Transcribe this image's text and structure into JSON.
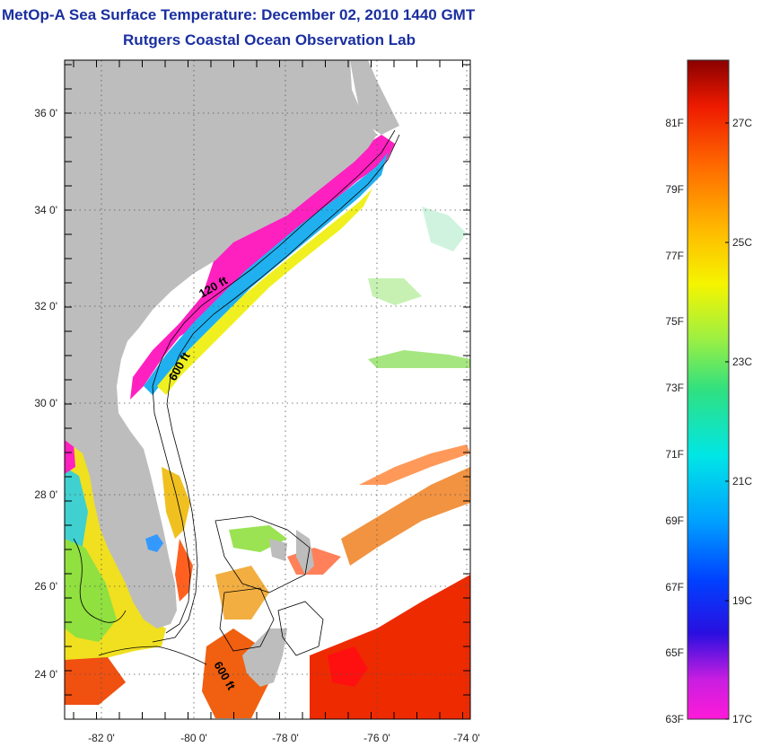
{
  "title": {
    "line1": "MetOp-A Sea Surface Temperature:  December 02, 2010 1440 GMT",
    "line2": "Rutgers Coastal Ocean Observation Lab"
  },
  "axes": {
    "lat_ticks": [
      "36 0'",
      "34 0'",
      "32 0'",
      "30 0'",
      "28 0'",
      "26 0'",
      "24 0'"
    ],
    "lon_ticks": [
      "-82 0'",
      "-80 0'",
      "-78 0'",
      "-76 0'",
      "-74 0'"
    ]
  },
  "contours": {
    "label_120": "120 ft",
    "label_600a": "600 ft",
    "label_600b": "600 ft"
  },
  "colorbar": {
    "fahrenheit": [
      "81F",
      "79F",
      "77F",
      "75F",
      "73F",
      "71F",
      "69F",
      "67F",
      "65F",
      "63F"
    ],
    "celsius": [
      "27C",
      "25C",
      "23C",
      "21C",
      "19C",
      "17C"
    ]
  },
  "colors": {
    "land": "#bdbdbd",
    "title": "#1a2fa0"
  }
}
